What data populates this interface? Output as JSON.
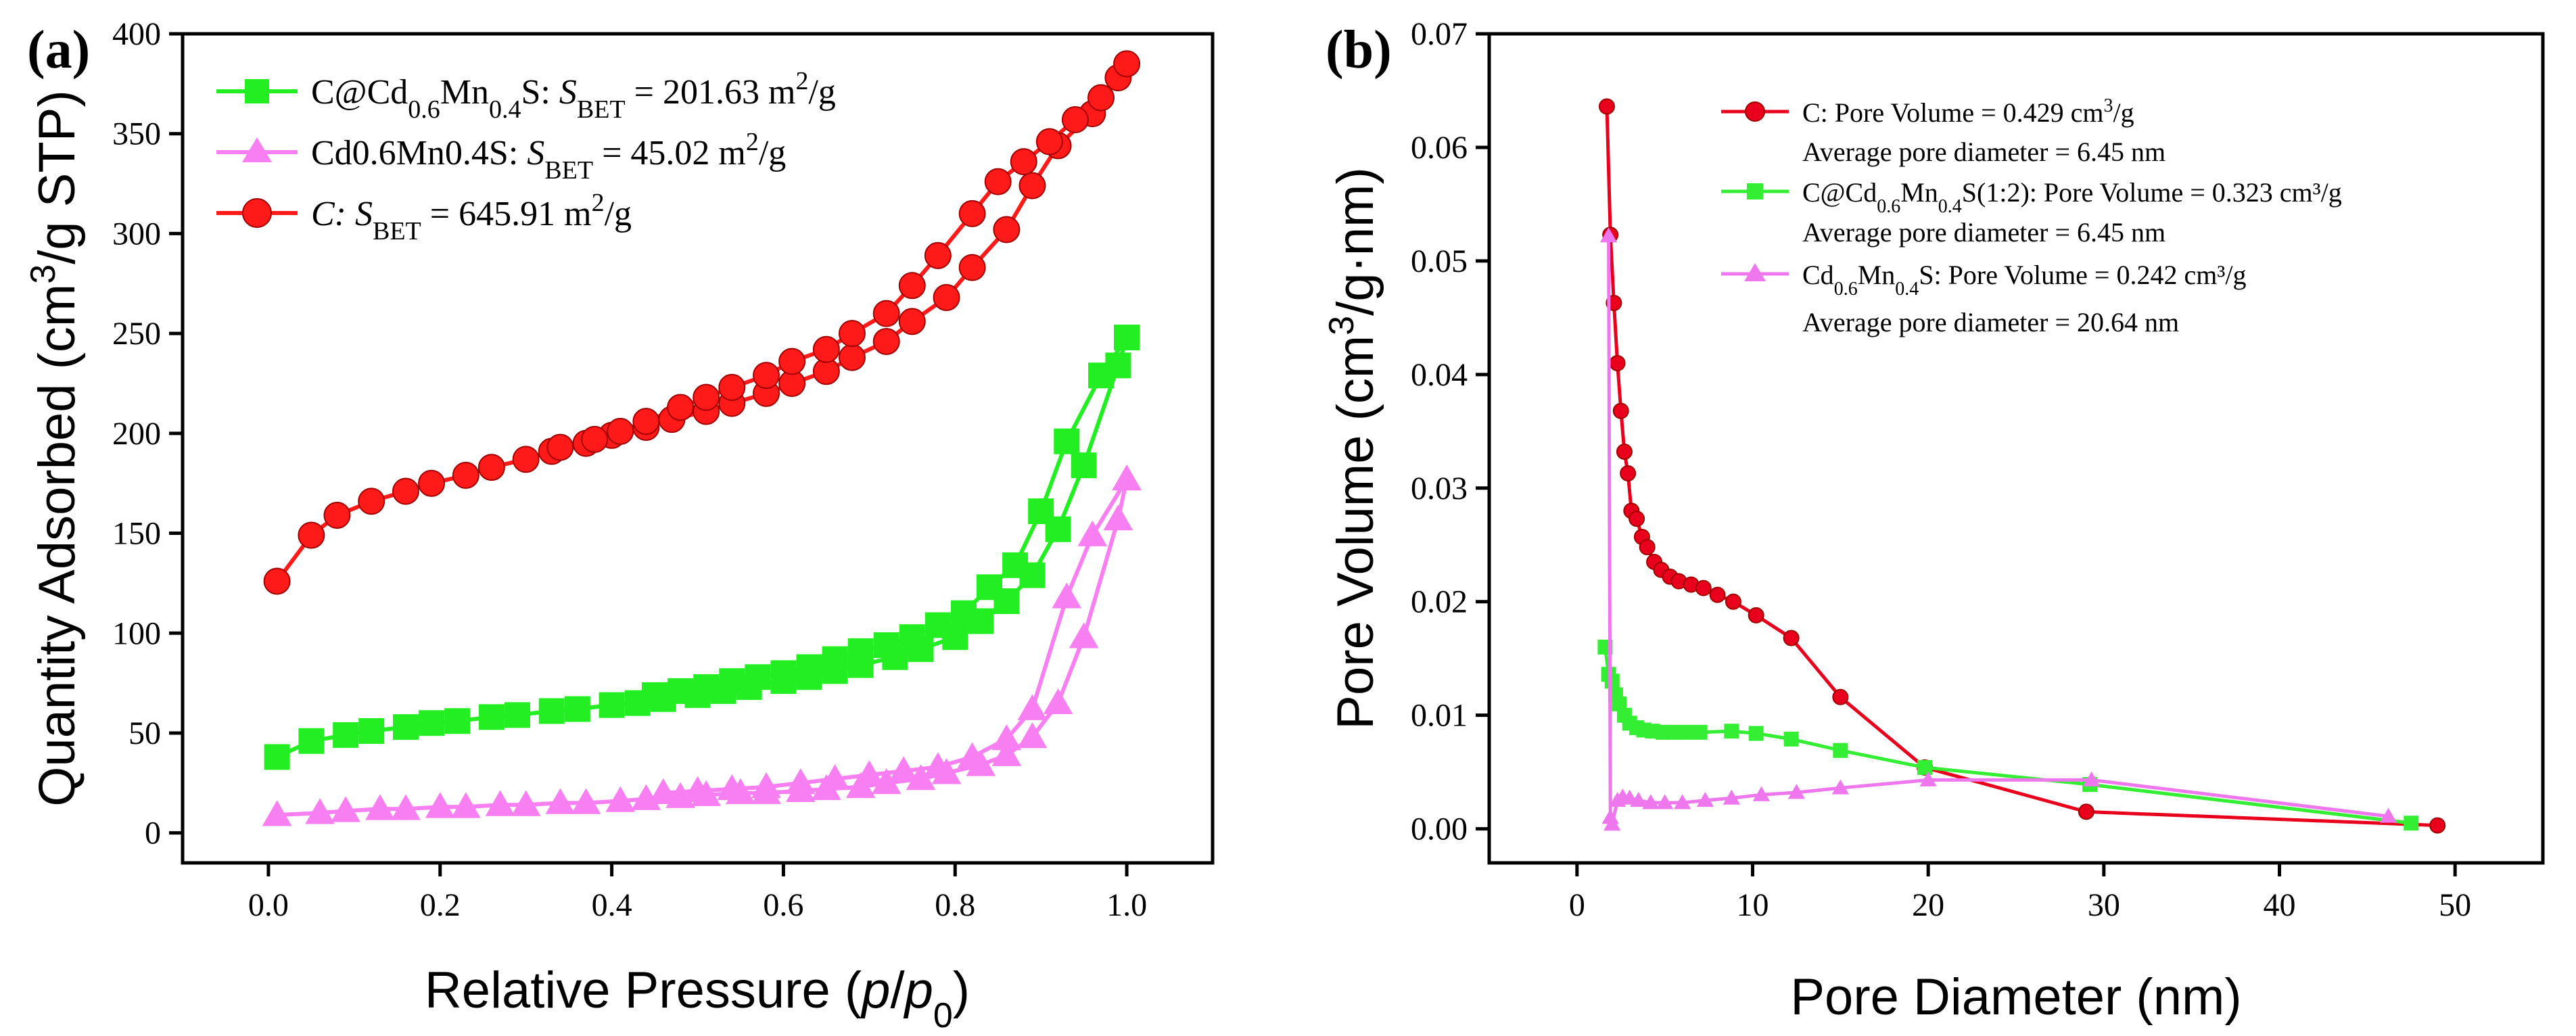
{
  "chart_data": [
    {
      "type": "line",
      "panel_label": "(a)",
      "title": "",
      "xlabel": {
        "prefix": "Relative Pressure (",
        "var1": "p",
        "slash": "/",
        "var2": "p",
        "sub": "0",
        "suffix": ")"
      },
      "ylabel": {
        "prefix": "Quantity Adsorbed (cm",
        "sup": "3",
        "suffix": "/g STP)"
      },
      "xlim": [
        -0.1,
        1.1
      ],
      "ylim": [
        -15,
        400
      ],
      "xticks": [
        0.0,
        0.2,
        0.4,
        0.6,
        0.8,
        1.0
      ],
      "xtick_labels": [
        "0.0",
        "0.2",
        "0.4",
        "0.6",
        "0.8",
        "1.0"
      ],
      "yticks": [
        0,
        50,
        100,
        150,
        200,
        250,
        300,
        350,
        400
      ],
      "ytick_labels": [
        "0",
        "50",
        "100",
        "150",
        "200",
        "250",
        "300",
        "350",
        "400"
      ],
      "legend_position": "top-left",
      "series": [
        {
          "name": "C@Cd0.6Mn0.4S",
          "legend": {
            "base": "C@Cd",
            "sub1": "0.6",
            "mid": "Mn",
            "sub2": "0.4",
            "tail": "S: ",
            "s": "S",
            "bet": "BET",
            "value": " = 201.63 m",
            "sup": "2",
            "unit": "/g"
          },
          "color": "#22ee22",
          "marker": "square",
          "adsorption": {
            "x": [
              0.01,
              0.05,
              0.09,
              0.12,
              0.16,
              0.19,
              0.22,
              0.26,
              0.29,
              0.33,
              0.36,
              0.4,
              0.43,
              0.46,
              0.5,
              0.53,
              0.56,
              0.6,
              0.63,
              0.66,
              0.69,
              0.73,
              0.76,
              0.8,
              0.83,
              0.86,
              0.89,
              0.92,
              0.95,
              0.99,
              1.0
            ],
            "y": [
              38,
              46,
              49,
              51,
              53,
              55,
              56,
              58,
              59,
              61,
              62,
              64,
              65,
              67,
              69,
              71,
              73,
              76,
              78,
              81,
              84,
              88,
              92,
              98,
              106,
              116,
              129,
              152,
              184,
              234,
              248
            ]
          },
          "desorption": {
            "x": [
              1.0,
              0.97,
              0.93,
              0.9,
              0.87,
              0.84,
              0.81,
              0.78,
              0.75,
              0.72,
              0.69,
              0.66,
              0.63,
              0.6,
              0.57,
              0.54,
              0.51,
              0.48,
              0.45
            ],
            "y": [
              248,
              229,
              196,
              161,
              134,
              123,
              110,
              104,
              98,
              94,
              91,
              87,
              83,
              80,
              78,
              76,
              73,
              71,
              69
            ]
          }
        },
        {
          "name": "Cd0.6Mn0.4S",
          "legend": {
            "label": "Cd0.6Mn0.4S: ",
            "s": "S",
            "bet": "BET",
            "value": " = 45.02 m",
            "sup": "2",
            "unit": "/g"
          },
          "color": "#f77ff2",
          "marker": "triangle",
          "adsorption": {
            "x": [
              0.01,
              0.06,
              0.09,
              0.13,
              0.16,
              0.2,
              0.23,
              0.27,
              0.3,
              0.34,
              0.37,
              0.41,
              0.44,
              0.48,
              0.51,
              0.55,
              0.58,
              0.62,
              0.65,
              0.69,
              0.72,
              0.76,
              0.79,
              0.83,
              0.86,
              0.89,
              0.92,
              0.95,
              0.99,
              1.0
            ],
            "y": [
              9,
              10,
              11,
              12,
              12,
              13,
              13,
              14,
              14,
              15,
              15,
              16,
              17,
              18,
              19,
              20,
              20,
              21,
              22,
              23,
              25,
              27,
              30,
              34,
              39,
              48,
              65,
              98,
              157,
              177
            ]
          },
          "desorption": {
            "x": [
              1.0,
              0.96,
              0.93,
              0.89,
              0.86,
              0.82,
              0.78,
              0.74,
              0.7,
              0.66,
              0.62,
              0.58,
              0.54,
              0.5,
              0.46
            ],
            "y": [
              177,
              149,
              118,
              62,
              47,
              38,
              33,
              31,
              29,
              27,
              25,
              23,
              22,
              21,
              20
            ]
          }
        },
        {
          "name": "C",
          "legend": {
            "label": "C: ",
            "s": "S",
            "bet": "BET",
            "value": " = 645.91 m",
            "sup": "2",
            "unit": "/g"
          },
          "color": "#ff1a1a",
          "marker": "circle",
          "adsorption": {
            "x": [
              0.01,
              0.05,
              0.08,
              0.12,
              0.16,
              0.19,
              0.23,
              0.26,
              0.3,
              0.33,
              0.37,
              0.4,
              0.44,
              0.47,
              0.51,
              0.54,
              0.58,
              0.61,
              0.65,
              0.68,
              0.72,
              0.75,
              0.79,
              0.82,
              0.86,
              0.89,
              0.92,
              0.96,
              0.99
            ],
            "y": [
              126,
              149,
              159,
              166,
              171,
              175,
              179,
              183,
              187,
              191,
              195,
              199,
              203,
              207,
              211,
              215,
              220,
              225,
              231,
              238,
              246,
              256,
              268,
              283,
              302,
              324,
              344,
              360,
              378
            ]
          },
          "desorption": {
            "x": [
              1.0,
              0.97,
              0.94,
              0.91,
              0.88,
              0.85,
              0.82,
              0.78,
              0.75,
              0.72,
              0.68,
              0.65,
              0.61,
              0.58,
              0.54,
              0.51,
              0.48,
              0.44,
              0.41,
              0.38,
              0.34
            ],
            "y": [
              385,
              368,
              357,
              346,
              336,
              326,
              310,
              289,
              274,
              260,
              250,
              242,
              236,
              229,
              223,
              218,
              213,
              206,
              201,
              197,
              193
            ]
          }
        }
      ]
    },
    {
      "type": "line",
      "panel_label": "(b)",
      "title": "",
      "xlabel": "Pore Diameter (nm)",
      "ylabel": {
        "prefix": "Pore Volume (cm",
        "sup": "3",
        "suffix": "/g·nm)"
      },
      "xlim": [
        -5,
        55
      ],
      "ylim": [
        -0.003,
        0.07
      ],
      "xticks": [
        0,
        10,
        20,
        30,
        40,
        50
      ],
      "xtick_labels": [
        "0",
        "10",
        "20",
        "30",
        "40",
        "50"
      ],
      "yticks": [
        0.0,
        0.01,
        0.02,
        0.03,
        0.04,
        0.05,
        0.06,
        0.07
      ],
      "ytick_labels": [
        "0.00",
        "0.01",
        "0.02",
        "0.03",
        "0.04",
        "0.05",
        "0.06",
        "0.07"
      ],
      "legend_position": "top-center",
      "series": [
        {
          "name": "C",
          "legend": {
            "line1": "C: Pore Volume = 0.429 cm",
            "sup": "3",
            "unit": "/g",
            "line2": "Average pore diameter = 6.45 nm"
          },
          "color": "#e8001c",
          "marker": "circle",
          "x": [
            1.7,
            1.9,
            2.1,
            2.3,
            2.5,
            2.7,
            2.9,
            3.1,
            3.4,
            3.7,
            4.0,
            4.4,
            4.8,
            5.3,
            5.8,
            6.5,
            7.2,
            8.0,
            8.9,
            10.2,
            12.2,
            15.0,
            19.8,
            29.0,
            49.0
          ],
          "y": [
            0.0636,
            0.0523,
            0.0463,
            0.041,
            0.0368,
            0.0332,
            0.0313,
            0.028,
            0.0273,
            0.0257,
            0.0248,
            0.0235,
            0.0228,
            0.0222,
            0.0218,
            0.0215,
            0.0212,
            0.0206,
            0.02,
            0.0188,
            0.0168,
            0.0116,
            0.0054,
            0.0015,
            0.0003
          ]
        },
        {
          "name": "C@Cd0.6Mn0.4S(1:2)",
          "legend": {
            "base": "C@Cd",
            "sub1": "0.6",
            "mid": "Mn",
            "sub2": "0.4",
            "tail": "S(1:2): Pore Volume = 0.323 cm³/g",
            "line2": "Average pore diameter = 6.45 nm"
          },
          "color": "#33ee33",
          "marker": "square",
          "x": [
            1.6,
            1.8,
            2.0,
            2.2,
            2.4,
            2.7,
            3.0,
            3.4,
            3.8,
            4.3,
            4.9,
            5.5,
            6.2,
            7.0,
            8.8,
            10.2,
            12.2,
            15.0,
            19.8,
            29.2,
            47.5
          ],
          "y": [
            0.016,
            0.0136,
            0.013,
            0.0118,
            0.011,
            0.01,
            0.0093,
            0.0089,
            0.0087,
            0.0086,
            0.0085,
            0.0085,
            0.0085,
            0.0085,
            0.0086,
            0.0084,
            0.0079,
            0.0069,
            0.0054,
            0.0039,
            0.0005
          ]
        },
        {
          "name": "Cd0.6Mn0.4S",
          "legend": {
            "base": "Cd",
            "sub1": "0.6",
            "mid": "Mn",
            "sub2": "0.4",
            "tail": "S: Pore Volume = 0.242 cm³/g",
            "line2": "Average pore diameter = 20.64 nm"
          },
          "color": "#ee77ee",
          "marker": "triangle",
          "x": [
            1.8,
            1.9,
            2.0,
            2.3,
            2.6,
            3.0,
            3.5,
            4.2,
            5.0,
            6.0,
            7.3,
            8.8,
            10.5,
            12.5,
            15.0,
            20.0,
            29.3,
            46.2
          ],
          "y": [
            0.0522,
            0.001,
            0.0004,
            0.0025,
            0.0028,
            0.0027,
            0.0025,
            0.0023,
            0.0023,
            0.0023,
            0.0025,
            0.0027,
            0.003,
            0.0032,
            0.0036,
            0.0043,
            0.0043,
            0.0011
          ]
        }
      ]
    }
  ]
}
